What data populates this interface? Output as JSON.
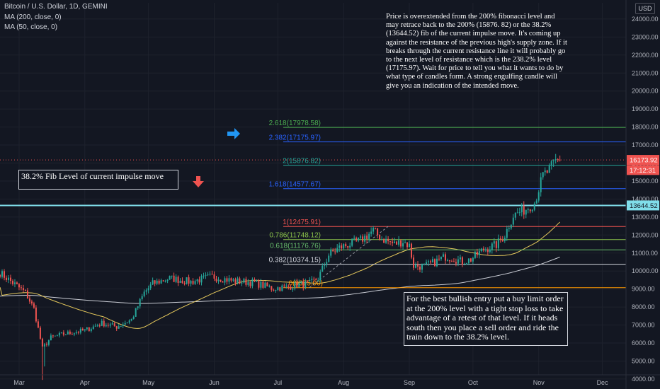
{
  "header": {
    "title": "Bitcoin / U.S. Dollar, 1D, GEMINI",
    "ma200": "MA (200, close, 0)",
    "ma50": "MA (50, close, 0)"
  },
  "currency_button": "USD",
  "annotations": {
    "top_note": "Price is overextended from the 200% fibonacci level and may retrace back to the 200% (15876. 82) or the 38.2% (13644.52) fib of the current impulse move. It's coming up against the resistance of the previous high's supply zone.  If it breaks through the current resistance line it will probably go to the next level of resistance which is the 238.2% level (17175.97). Wait for price to tell you what it wants to do by what type of candles form. A strong engulfing candle will give you an indication of the intended move.",
    "fib_note": "38.2% Fib Level of current impulse move",
    "bottom_note": "For the best bullish entry put a buy limit order at the 200% level with a tight stop loss to take advantage of a retest of that level. If it heads south then you place a sell order and ride the train down to the 38.2% level."
  },
  "colors": {
    "background": "#131722",
    "up": "#26a69a",
    "down": "#ef5350",
    "ma50": "#e6c95c",
    "ma200": "#c9ccd4"
  },
  "chart_data": {
    "type": "candlestick",
    "symbol": "Bitcoin / U.S. Dollar, 1D, GEMINI",
    "y_axis": {
      "ylim": [
        3800,
        24400
      ],
      "ticks": [
        4000,
        5000,
        6000,
        7000,
        8000,
        9000,
        10000,
        11000,
        12000,
        13000,
        14000,
        15000,
        16000,
        17000,
        18000,
        19000,
        20000,
        21000,
        22000,
        23000,
        24000
      ],
      "tick_labels": [
        "4000.00",
        "5000.00",
        "6000.00",
        "7000.00",
        "8000.00",
        "9000.00",
        "10000.00",
        "11000.00",
        "12000.00",
        "13000.00",
        "14000.00",
        "15000.00",
        "16000.00",
        "17000.00",
        "18000.00",
        "19000.00",
        "20000.00",
        "21000.00",
        "22000.00",
        "23000.00",
        "24000.00"
      ],
      "position": "right"
    },
    "x_axis": {
      "start_date": "2020-02-21",
      "ticks": [
        {
          "day": 9,
          "label": "Mar"
        },
        {
          "day": 40,
          "label": "Apr"
        },
        {
          "day": 70,
          "label": "May"
        },
        {
          "day": 101,
          "label": "Jun"
        },
        {
          "day": 131,
          "label": "Jul"
        },
        {
          "day": 162,
          "label": "Aug"
        },
        {
          "day": 193,
          "label": "Sep"
        },
        {
          "day": 223,
          "label": "Oct"
        },
        {
          "day": 254,
          "label": "Nov"
        },
        {
          "day": 284,
          "label": "Dec"
        }
      ]
    },
    "keypoints_close": [
      [
        0,
        9900
      ],
      [
        12,
        8800
      ],
      [
        16,
        7900
      ],
      [
        20,
        5700
      ],
      [
        24,
        6300
      ],
      [
        30,
        6500
      ],
      [
        40,
        6700
      ],
      [
        48,
        7100
      ],
      [
        55,
        6900
      ],
      [
        62,
        7300
      ],
      [
        68,
        8800
      ],
      [
        72,
        9300
      ],
      [
        80,
        9600
      ],
      [
        90,
        9400
      ],
      [
        100,
        9700
      ],
      [
        110,
        9450
      ],
      [
        120,
        9350
      ],
      [
        128,
        9050
      ],
      [
        135,
        9100
      ],
      [
        140,
        9250
      ],
      [
        146,
        9300
      ],
      [
        150,
        9600
      ],
      [
        155,
        10900
      ],
      [
        160,
        11300
      ],
      [
        165,
        11500
      ],
      [
        170,
        11700
      ],
      [
        176,
        12250
      ],
      [
        180,
        11800
      ],
      [
        186,
        11500
      ],
      [
        190,
        11650
      ],
      [
        193,
        11400
      ],
      [
        195,
        10300
      ],
      [
        200,
        10250
      ],
      [
        205,
        10500
      ],
      [
        210,
        10800
      ],
      [
        214,
        10700
      ],
      [
        218,
        10500
      ],
      [
        222,
        10650
      ],
      [
        228,
        11200
      ],
      [
        234,
        11450
      ],
      [
        238,
        12000
      ],
      [
        242,
        13100
      ],
      [
        248,
        13450
      ],
      [
        252,
        13800
      ],
      [
        256,
        15300
      ],
      [
        259,
        15600
      ],
      [
        262,
        16100
      ],
      [
        264,
        16174
      ]
    ],
    "last_price": "16173.92",
    "countdown": "17:12:31",
    "fib_levels": [
      {
        "label": "2.618(17978.58)",
        "value": 17978.58,
        "color": "#4caf50"
      },
      {
        "label": "2.382(17175.97)",
        "value": 17175.97,
        "color": "#2962ff"
      },
      {
        "label": "2(15876.82)",
        "value": 15876.82,
        "color": "#26a69a"
      },
      {
        "label": "1.618(14577.67)",
        "value": 14577.67,
        "color": "#2962ff"
      },
      {
        "label": "1(12475.91)",
        "value": 12475.91,
        "color": "#ef5350"
      },
      {
        "label": "0.786(11748.12)",
        "value": 11748.12,
        "color": "#8bc34a"
      },
      {
        "label": "0.618(11176.76)",
        "value": 11176.76,
        "color": "#66bb6a"
      },
      {
        "label": "0.382(10374.15)",
        "value": 10374.15,
        "color": "#d1d4dc"
      },
      {
        "label": "0(9075.00)",
        "value": 9075.0,
        "color": "#ff9800"
      }
    ],
    "horizontal_line": {
      "value": 13644.52,
      "label": "13644.52",
      "color": "#80deea"
    },
    "moving_averages": [
      {
        "name": "MA (200, close, 0)",
        "color": "#c9ccd4"
      },
      {
        "name": "MA (50, close, 0)",
        "color": "#e6c95c"
      }
    ]
  }
}
